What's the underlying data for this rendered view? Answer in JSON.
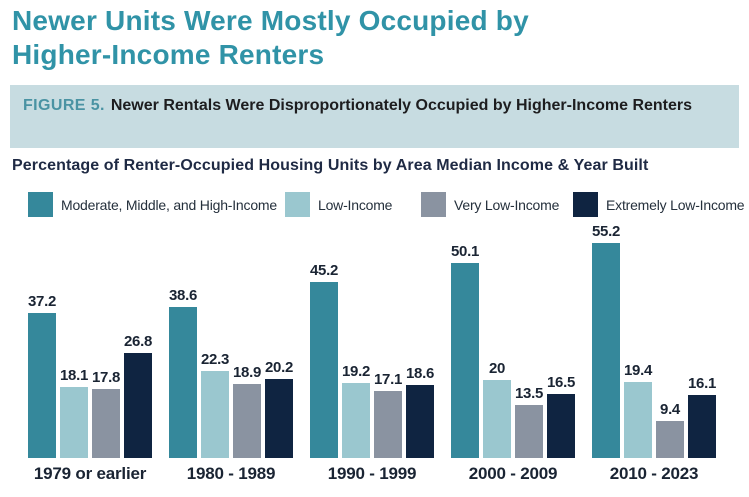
{
  "header": {
    "title": "Newer Units Were Mostly Occupied by Higher-Income Renters"
  },
  "figure": {
    "label": "FIGURE 5.",
    "title": "Newer Rentals Were Disproportionately Occupied by Higher-Income Renters"
  },
  "theme": {
    "title_color": "#3093A7",
    "figure_label_color": "#4A93A3",
    "figure_box_background": "#C7DCE1",
    "figure_text_color": "#1D1D1F",
    "subtitle_color": "#1F2A44",
    "axis_label_color": "#1A2433"
  },
  "chart_data": {
    "type": "bar",
    "title": "Percentage of Renter-Occupied Housing Units by Area Median Income & Year Built",
    "xlabel": "Year Built",
    "ylabel": "Percentage of Renter-Occupied Housing Units",
    "ylim": [
      0,
      58
    ],
    "grid": false,
    "legend_position": "top",
    "value_labels_shown": true,
    "categories": [
      "1979 or earlier",
      "1980 - 1989",
      "1990 - 1999",
      "2000 - 2009",
      "2010 - 2023"
    ],
    "series": [
      {
        "name": "Moderate, Middle, and High-Income",
        "color": "#35889B",
        "values": [
          37.2,
          38.6,
          45.2,
          50.1,
          55.2
        ]
      },
      {
        "name": "Low-Income",
        "color": "#9AC7CF",
        "values": [
          18.1,
          22.3,
          19.2,
          20,
          19.4
        ]
      },
      {
        "name": "Very Low-Income",
        "color": "#8A93A1",
        "values": [
          17.8,
          18.9,
          17.1,
          13.5,
          9.4
        ]
      },
      {
        "name": "Extremely Low-Income",
        "color": "#0F2441",
        "values": [
          26.8,
          20.2,
          18.6,
          16.5,
          16.1
        ]
      }
    ]
  }
}
